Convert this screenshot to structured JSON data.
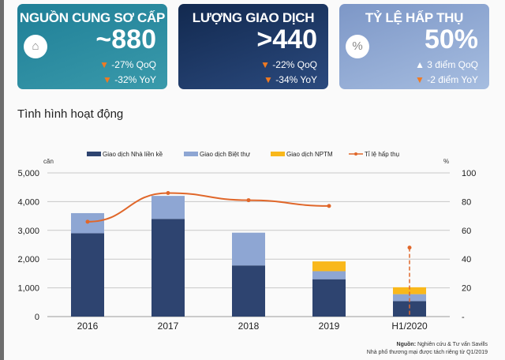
{
  "cards": [
    {
      "title": "NGUỒN CUNG SƠ CẤP",
      "value": "~880",
      "icon": "house-icon",
      "lines": [
        {
          "dir": "down",
          "text": "-27% QoQ"
        },
        {
          "dir": "down",
          "text": "-32% YoY"
        }
      ]
    },
    {
      "title": "LƯỢNG GIAO DỊCH",
      "value": ">440",
      "lines": [
        {
          "dir": "down",
          "text": "-22% QoQ"
        },
        {
          "dir": "down",
          "text": "-34% YoY"
        }
      ]
    },
    {
      "title": "TỶ LỆ HẤP THỤ",
      "value": "50%",
      "icon": "percent-icon",
      "lines": [
        {
          "dir": "up",
          "text": "3 điểm QoQ"
        },
        {
          "dir": "down",
          "text": "-2 điểm YoY"
        }
      ]
    }
  ],
  "section_title": "Tình hình hoạt động",
  "chart_data": {
    "type": "bar",
    "stacked": true,
    "categories": [
      "2016",
      "2017",
      "2018",
      "2019",
      "H1/2020"
    ],
    "ylabel": "căn",
    "y2label": "%",
    "ylim": [
      0,
      5000
    ],
    "y2lim": [
      0,
      100
    ],
    "yticks": [
      "0",
      "1,000",
      "2,000",
      "3,000",
      "4,000",
      "5,000"
    ],
    "y2ticks": [
      "-",
      "20",
      "40",
      "60",
      "80",
      "100"
    ],
    "grid": true,
    "legend": "top",
    "series": [
      {
        "name": "Giao dịch Nhà liền kề",
        "color": "#2e4470",
        "values": [
          2900,
          3400,
          1780,
          1300,
          540
        ]
      },
      {
        "name": "Giao dịch Biệt thự",
        "color": "#8ea6d3",
        "values": [
          700,
          800,
          1140,
          280,
          240
        ]
      },
      {
        "name": "Giao dịch NPTM",
        "color": "#f9b81b",
        "values": [
          0,
          0,
          0,
          340,
          240
        ]
      },
      {
        "name": "Tỉ lệ hấp thụ",
        "type": "line",
        "axis": "right",
        "color": "#e0672a",
        "values": [
          66,
          86,
          81,
          77,
          48
        ]
      }
    ]
  },
  "source": {
    "label": "Nguồn:",
    "text": "Nghiên cứu & Tư vấn Savills",
    "note": "Nhà phố thương mại được tách riêng từ Q1/2019"
  }
}
